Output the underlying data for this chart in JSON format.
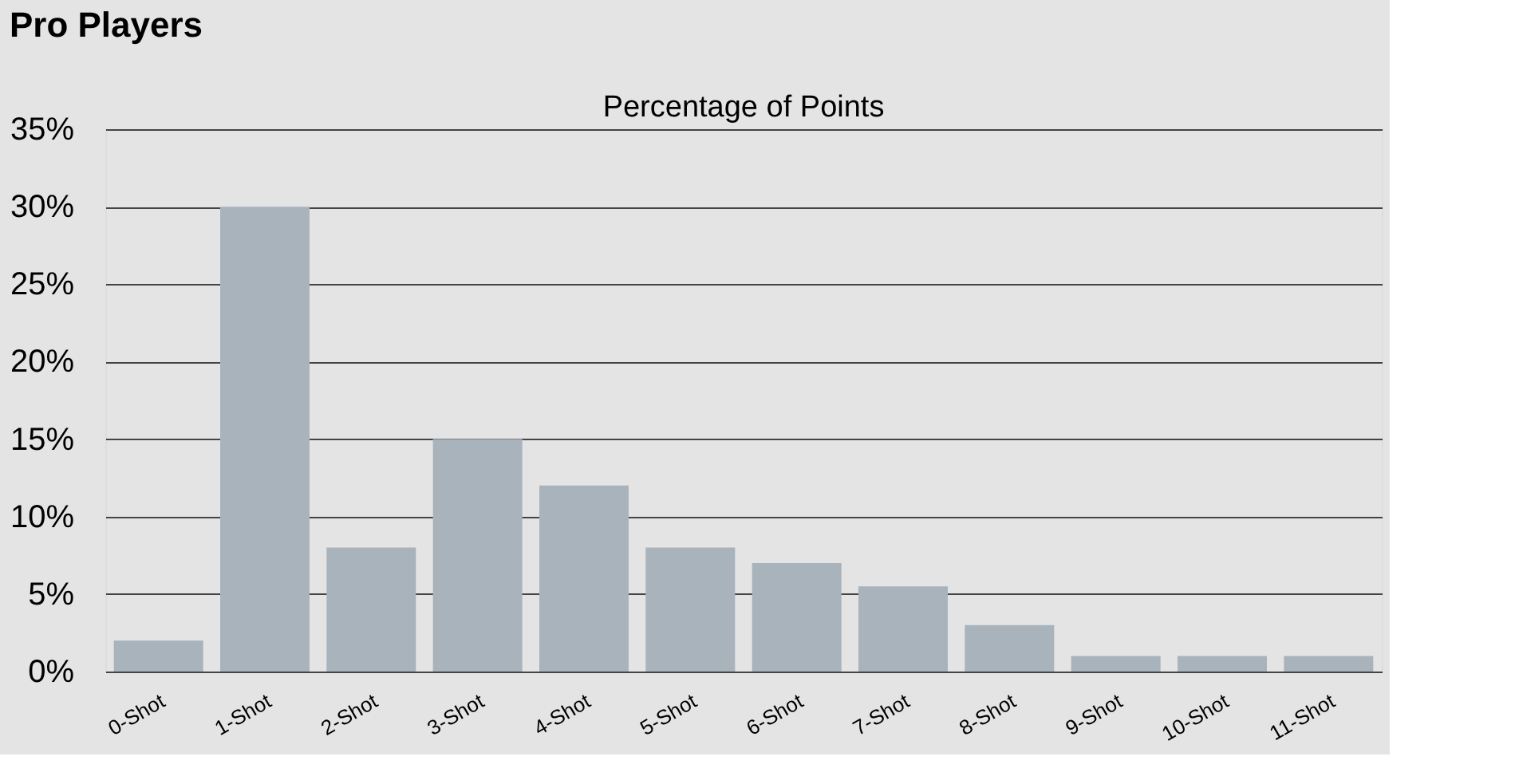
{
  "chart_data": {
    "type": "bar",
    "title": "Pro Players",
    "subtitle": "Percentage of Points",
    "categories": [
      "0-Shot",
      "1-Shot",
      "2-Shot",
      "3-Shot",
      "4-Shot",
      "5-Shot",
      "6-Shot",
      "7-Shot",
      "8-Shot",
      "9-Shot",
      "10-Shot",
      "11-Shot"
    ],
    "values": [
      2,
      30,
      8,
      15,
      12,
      8,
      7,
      5.5,
      3,
      1,
      1,
      1
    ],
    "color": "#a9b3bc",
    "ylim": [
      0,
      35
    ],
    "yticks": [
      {
        "value": 0,
        "label": "0%"
      },
      {
        "value": 5,
        "label": "5%"
      },
      {
        "value": 10,
        "label": "10%"
      },
      {
        "value": 15,
        "label": "15%"
      },
      {
        "value": 20,
        "label": "20%"
      },
      {
        "value": 25,
        "label": "25%"
      },
      {
        "value": 30,
        "label": "30%"
      },
      {
        "value": 35,
        "label": "35%"
      }
    ],
    "grid": "y"
  }
}
